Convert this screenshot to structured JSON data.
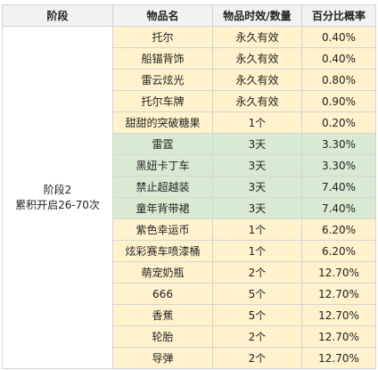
{
  "header": {
    "stage": "阶段",
    "item": "物品名",
    "duration": "物品时效/数量",
    "probability": "百分比概率"
  },
  "stage": {
    "name": "阶段2",
    "subtitle": "累积开启26-70次"
  },
  "rows": [
    {
      "item": "托尔",
      "duration": "永久有效",
      "probability": "0.40%",
      "color": "#fff2cc"
    },
    {
      "item": "船锚背饰",
      "duration": "永久有效",
      "probability": "0.40%",
      "color": "#fff2cc"
    },
    {
      "item": "雷云炫光",
      "duration": "永久有效",
      "probability": "0.80%",
      "color": "#fff2cc"
    },
    {
      "item": "托尔车牌",
      "duration": "永久有效",
      "probability": "0.90%",
      "color": "#fff2cc"
    },
    {
      "item": "甜甜的突破糖果",
      "duration": "1个",
      "probability": "0.20%",
      "color": "#fff2cc"
    },
    {
      "item": "雷霆",
      "duration": "3天",
      "probability": "3.30%",
      "color": "#d9ead3"
    },
    {
      "item": "黑妞卡丁车",
      "duration": "3天",
      "probability": "3.30%",
      "color": "#d9ead3"
    },
    {
      "item": "禁止超越装",
      "duration": "3天",
      "probability": "7.40%",
      "color": "#d9ead3"
    },
    {
      "item": "童年背带裙",
      "duration": "3天",
      "probability": "7.40%",
      "color": "#d9ead3"
    },
    {
      "item": "紫色幸运币",
      "duration": "1个",
      "probability": "6.20%",
      "color": "#fff2cc"
    },
    {
      "item": "炫彩赛车喷漆桶",
      "duration": "1个",
      "probability": "6.20%",
      "color": "#fff2cc"
    },
    {
      "item": "萌宠奶瓶",
      "duration": "2个",
      "probability": "12.70%",
      "color": "#fff2cc"
    },
    {
      "item": "666",
      "duration": "5个",
      "probability": "12.70%",
      "color": "#fff2cc"
    },
    {
      "item": "香蕉",
      "duration": "5个",
      "probability": "12.70%",
      "color": "#fff2cc"
    },
    {
      "item": "轮胎",
      "duration": "2个",
      "probability": "12.70%",
      "color": "#fff2cc"
    },
    {
      "item": "导弹",
      "duration": "2个",
      "probability": "12.70%",
      "color": "#fff2cc"
    }
  ]
}
